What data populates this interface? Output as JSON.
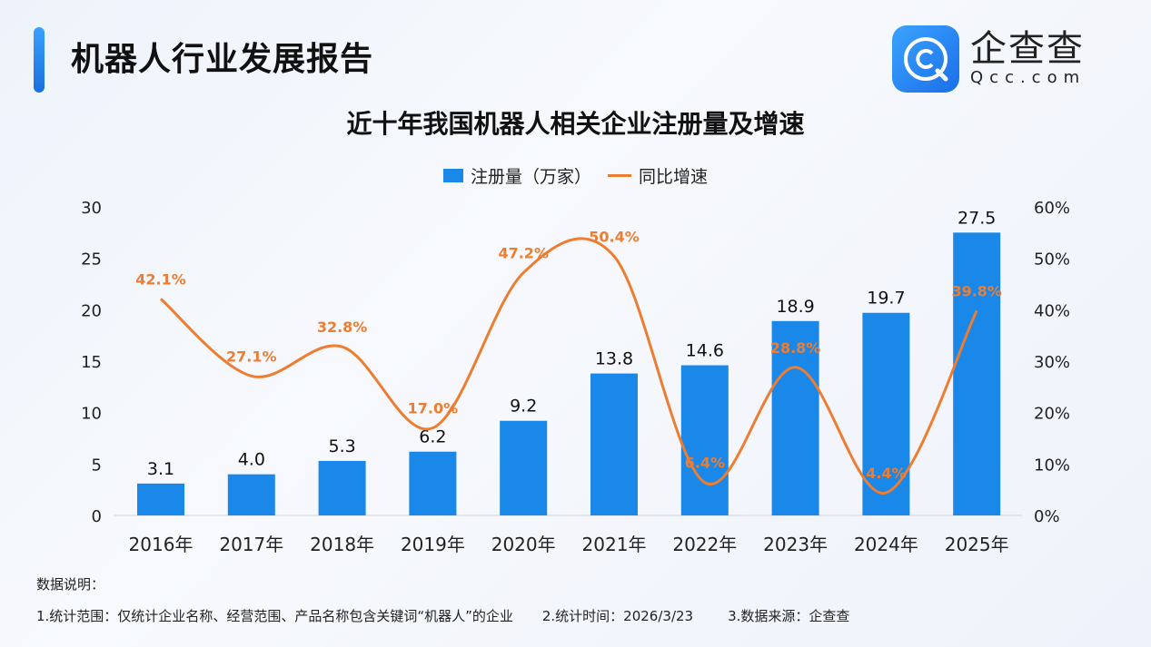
{
  "header": {
    "title": "机器人行业发展报告",
    "logo_cn": "企查查",
    "logo_en": "Qcc.com"
  },
  "chart_data": {
    "type": "bar+line",
    "title": "近十年我国机器人相关企业注册量及增速",
    "categories": [
      "2016年",
      "2017年",
      "2018年",
      "2019年",
      "2020年",
      "2021年",
      "2022年",
      "2023年",
      "2024年",
      "2025年"
    ],
    "series": [
      {
        "name": "注册量（万家）",
        "type": "bar",
        "axis": "left",
        "color": "#1a88e8",
        "values": [
          3.1,
          4.0,
          5.3,
          6.2,
          9.2,
          13.8,
          14.6,
          18.9,
          19.7,
          27.5
        ],
        "labels": [
          "3.1",
          "4.0",
          "5.3",
          "6.2",
          "9.2",
          "13.8",
          "14.6",
          "18.9",
          "19.7",
          "27.5"
        ]
      },
      {
        "name": "同比增速",
        "type": "line",
        "axis": "right",
        "color": "#ed7d31",
        "values": [
          42.1,
          27.1,
          32.8,
          17.0,
          47.2,
          50.4,
          6.4,
          28.8,
          4.4,
          39.8
        ],
        "labels": [
          "42.1%",
          "27.1%",
          "32.8%",
          "17.0%",
          "47.2%",
          "50.4%",
          "6.4%",
          "28.8%",
          "4.4%",
          "39.8%"
        ]
      }
    ],
    "y_left": {
      "range": [
        0,
        30
      ],
      "ticks": [
        "0",
        "5",
        "10",
        "15",
        "20",
        "25",
        "30"
      ]
    },
    "y_right": {
      "range": [
        0,
        60
      ],
      "ticks": [
        "0%",
        "10%",
        "20%",
        "30%",
        "40%",
        "50%",
        "60%"
      ]
    },
    "legend": "top",
    "grid": false
  },
  "notes": {
    "heading": "数据说明：",
    "items": [
      "1.统计范围：仅统计企业名称、经营范围、产品名称包含关键词“机器人”的企业",
      "2.统计时间：2026/3/23",
      "3.数据来源：企查查"
    ]
  }
}
